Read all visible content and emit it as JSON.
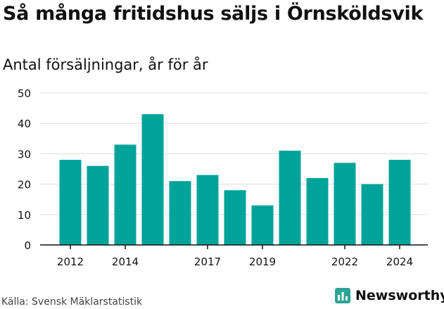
{
  "header": {
    "title": "Så många fritidshus säljs i Örnsköldsvik",
    "subtitle": "Antal försäljningar, år för år"
  },
  "footer": {
    "source": "Källa: Svensk Mäklarstatistik",
    "brand": "Newsworthy"
  },
  "colors": {
    "bar": "#00a39a",
    "brand": "#2ea394",
    "grid": "#dddddd",
    "axis": "#111111",
    "text": "#111111"
  },
  "chart_data": {
    "type": "bar",
    "title": "Så många fritidshus säljs i Örnsköldsvik",
    "subtitle": "Antal försäljningar, år för år",
    "categories": [
      "2012",
      "2013",
      "2014",
      "2015",
      "2016",
      "2017",
      "2018",
      "2019",
      "2020",
      "2021",
      "2022",
      "2023",
      "2024"
    ],
    "values": [
      28,
      26,
      33,
      43,
      21,
      23,
      18,
      13,
      31,
      22,
      27,
      20,
      28
    ],
    "x_tick_labels": [
      "2012",
      "2014",
      "2017",
      "2019",
      "2022",
      "2024"
    ],
    "ylim": [
      0,
      50
    ],
    "y_ticks": [
      0,
      10,
      20,
      30,
      40,
      50
    ],
    "grid": true,
    "legend": "none"
  }
}
